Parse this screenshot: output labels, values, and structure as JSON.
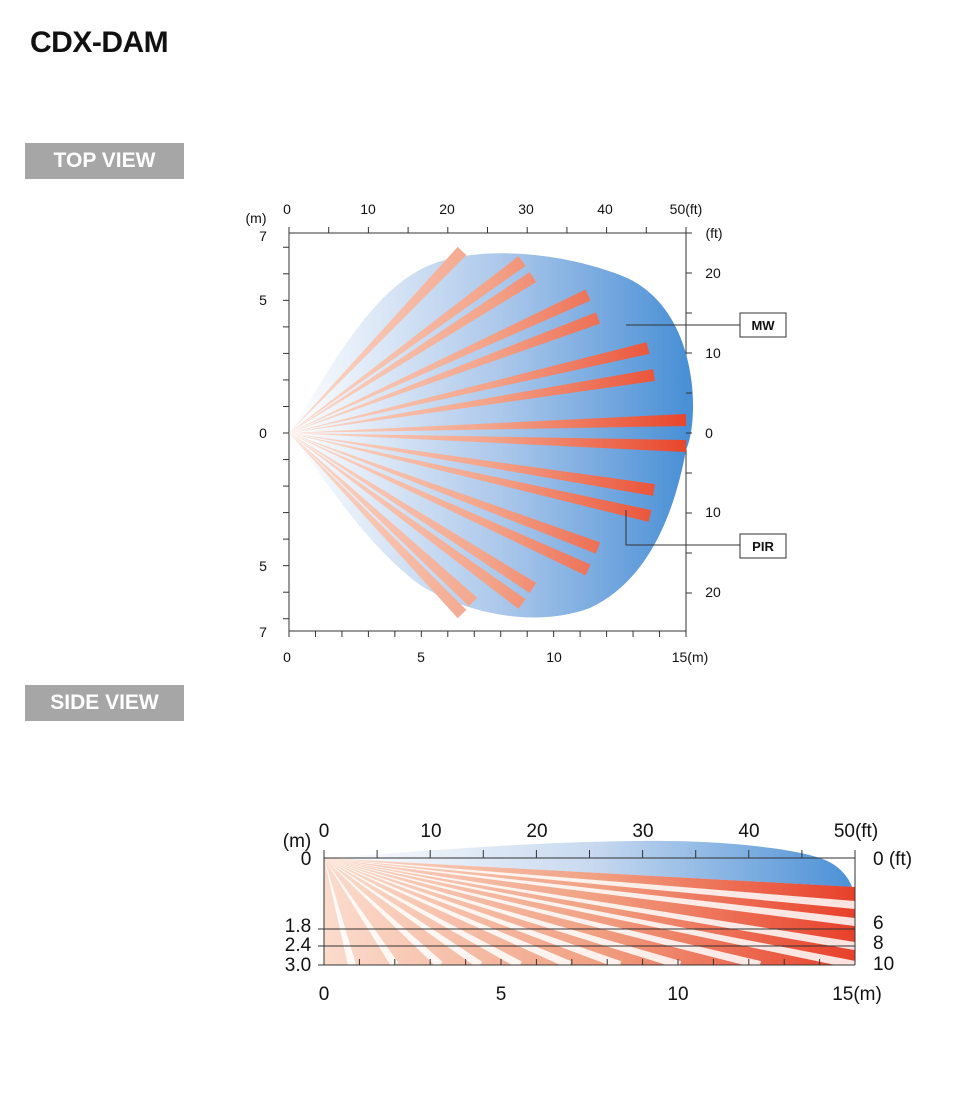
{
  "model": "CDX-DAM",
  "top_view": {
    "label": "TOP VIEW",
    "top_axis_labels": [
      "0",
      "10",
      "20",
      "30",
      "40",
      "50(ft)"
    ],
    "bottom_axis_labels": [
      "0",
      "5",
      "10",
      "15(m)"
    ],
    "left_unit": "(m)",
    "left_axis_labels": [
      "7",
      "5",
      "0",
      "5",
      "7"
    ],
    "right_unit": "(ft)",
    "right_axis_labels": [
      "20",
      "10",
      "0",
      "10",
      "20"
    ],
    "callout_mw": "MW",
    "callout_pir": "PIR",
    "colors": {
      "mw_light": "#ffffff",
      "mw_dark": "#4a90d6",
      "pir_light": "#f6c4ae",
      "pir_dark": "#e8462c"
    }
  },
  "side_view": {
    "label": "SIDE VIEW",
    "top_axis_labels": [
      "0",
      "10",
      "20",
      "30",
      "40",
      "50(ft)"
    ],
    "bottom_axis_labels": [
      "0",
      "5",
      "10",
      "15(m)"
    ],
    "left_unit": "(m)",
    "left_axis_labels": [
      "0",
      "1.8",
      "2.4",
      "3.0"
    ],
    "right_axis_labels": [
      "0 (ft)",
      "6",
      "8",
      "10"
    ]
  }
}
